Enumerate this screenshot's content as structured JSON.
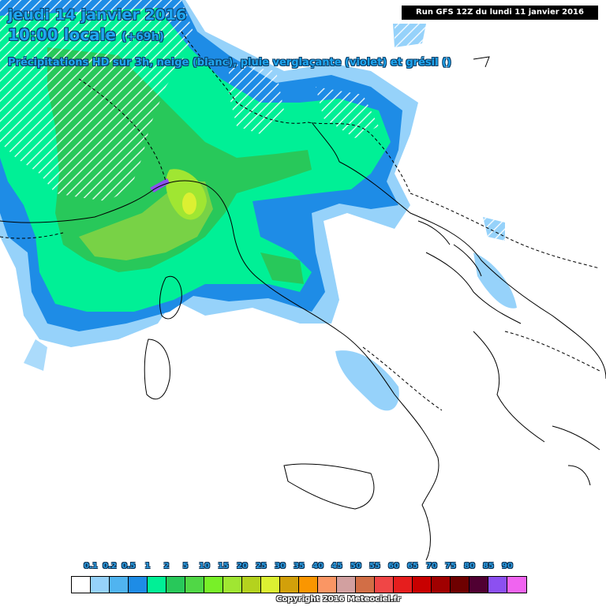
{
  "header": {
    "date": "jeudi 14 janvier 2016",
    "time": "10:00 locale",
    "lead": "(+69h)",
    "description": "Précipitations HD sur 3h, neige (blanc), pluie verglaçante (violet) et grésil ()"
  },
  "run_info": "Run GFS 12Z du lundi 11 janvier 2016",
  "legend": {
    "labels": [
      "0.1",
      "0.2",
      "0.5",
      "1",
      "2",
      "5",
      "10",
      "15",
      "20",
      "25",
      "30",
      "35",
      "40",
      "45",
      "50",
      "55",
      "60",
      "65",
      "70",
      "75",
      "80",
      "85",
      "90"
    ],
    "colors": [
      "#ffffff",
      "#96d2fa",
      "#50b4f0",
      "#1e8ce6",
      "#00f096",
      "#28c85a",
      "#50d746",
      "#78f028",
      "#a0e632",
      "#b4d21e",
      "#dcf032",
      "#d2a00a",
      "#fa9600",
      "#fa9664",
      "#d2a0a0",
      "#d26e46",
      "#f04646",
      "#e61e1e",
      "#c80000",
      "#a00000",
      "#6e0000",
      "#500032",
      "#8c50f0",
      "#f064f0"
    ]
  },
  "colors": {
    "title_text": "#1fa6f0",
    "rain_light": "#96d2fa",
    "rain_moderate": "#1e8ce6",
    "rain_heavy": "#28c85a",
    "snow_hatch": "#ffffff"
  },
  "copyright": "Copyright 2016 Meteociel.fr"
}
